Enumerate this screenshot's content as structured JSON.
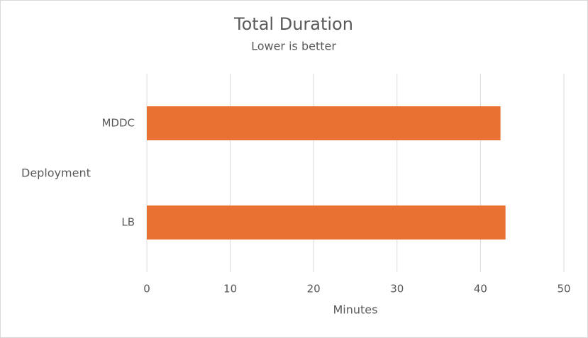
{
  "chart_data": {
    "type": "hbar",
    "title": "Total Duration",
    "subtitle": "Lower is better",
    "x_label": "Minutes",
    "y_label": "Deployment",
    "categories": [
      "MDDC",
      "LB"
    ],
    "values": [
      42.4,
      43.0
    ],
    "color": "#e97132",
    "xlim": [
      0,
      50
    ],
    "xticks": [
      0,
      10,
      20,
      30,
      40,
      50
    ],
    "grid": true
  }
}
